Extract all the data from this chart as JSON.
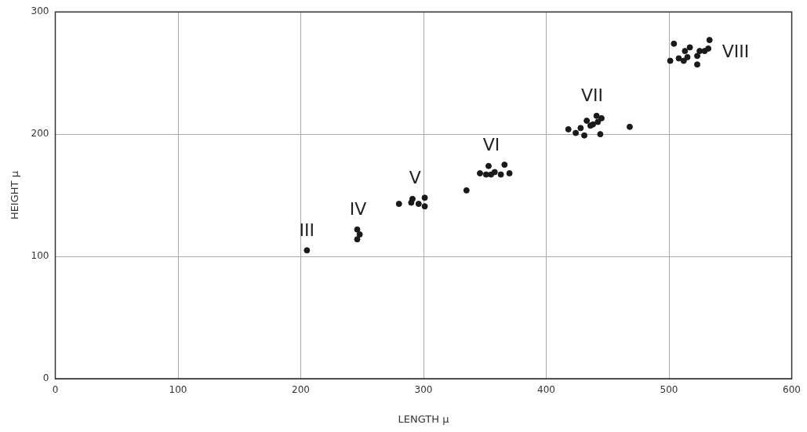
{
  "chart_data": {
    "type": "scatter",
    "xlabel": "LENGTH μ",
    "ylabel": "HEIGHT μ",
    "xlim": [
      0,
      600
    ],
    "xticks": [
      0,
      100,
      200,
      300,
      400,
      500,
      600
    ],
    "ylim": [
      0,
      300
    ],
    "yticks": [
      0,
      100,
      200,
      300
    ],
    "grid": true,
    "legend": false,
    "marker": "circle",
    "series": [
      {
        "name": "III",
        "color": "#1a1a1a",
        "x": [
          205
        ],
        "values": [
          105
        ]
      },
      {
        "name": "IV",
        "color": "#1a1a1a",
        "x": [
          246,
          248,
          246
        ],
        "values": [
          122,
          118,
          114
        ]
      },
      {
        "name": "V",
        "color": "#1a1a1a",
        "x": [
          280,
          290,
          291,
          296,
          301,
          301
        ],
        "values": [
          143,
          144,
          147,
          143,
          148,
          141
        ]
      },
      {
        "name": "VI",
        "color": "#1a1a1a",
        "x": [
          335,
          346,
          351,
          353,
          355,
          358,
          363,
          366,
          370
        ],
        "values": [
          154,
          168,
          167,
          174,
          167,
          169,
          167,
          175,
          168
        ]
      },
      {
        "name": "VII",
        "color": "#1a1a1a",
        "x": [
          418,
          424,
          428,
          431,
          433,
          436,
          438,
          441,
          442,
          445,
          444,
          468
        ],
        "values": [
          204,
          201,
          205,
          199,
          211,
          207,
          208,
          215,
          210,
          213,
          200,
          206
        ]
      },
      {
        "name": "VIII",
        "color": "#1a1a1a",
        "x": [
          501,
          504,
          508,
          513,
          512,
          515,
          517,
          523,
          523,
          525,
          529,
          532,
          533
        ],
        "values": [
          260,
          274,
          262,
          268,
          260,
          263,
          271,
          257,
          264,
          268,
          268,
          270,
          277
        ]
      }
    ]
  }
}
